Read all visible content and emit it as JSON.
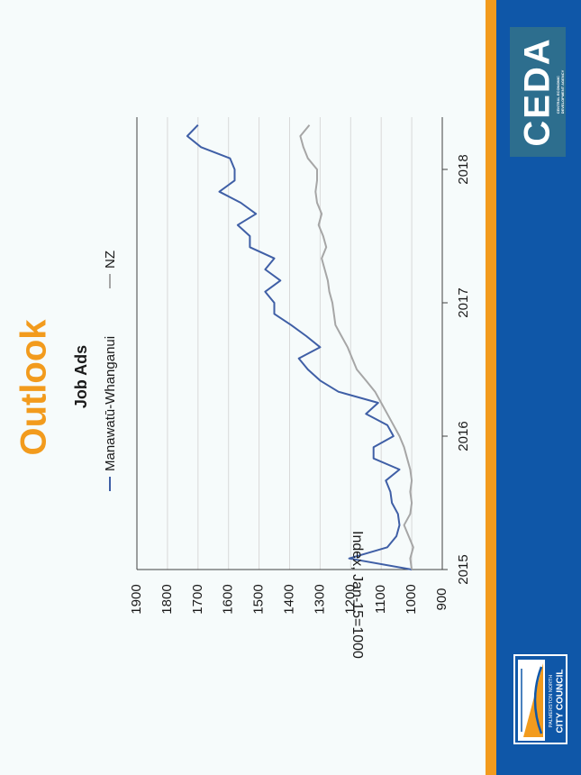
{
  "slide": {
    "title": "Outlook"
  },
  "colors": {
    "accent_orange": "#f29b1d",
    "band_blue": "#0f57a8",
    "ceda_box": "#2d6e8e",
    "series_regional": "#3f5fa6",
    "series_nz": "#a6a6a6",
    "gridline": "#d9d9d9",
    "axis": "#404040"
  },
  "logos": {
    "ceda": {
      "text": "CEDA",
      "subtitle_line1": "CENTRAL ECONOMIC",
      "subtitle_line2": "DEVELOPMENT AGENCY"
    },
    "pncc": {
      "line1": "PALMERSTON NORTH",
      "line2": "CITY COUNCIL"
    }
  },
  "chart_data": {
    "type": "line",
    "orientation": "rotated 90° counter-clockwise",
    "title": "Job Ads",
    "xlabel": "",
    "ylabel": "Index, Jan-15=1000",
    "ylim": [
      900,
      1900
    ],
    "yticks": [
      "900",
      "1000",
      "1100",
      "1200",
      "1300",
      "1400",
      "1500",
      "1600",
      "1700",
      "1800",
      "1900"
    ],
    "xlim": [
      2015.0,
      2018.333
    ],
    "xticks": [
      "2015",
      "2016",
      "2017",
      "2018"
    ],
    "grid": true,
    "legend_position": "top",
    "series": [
      {
        "name": "Manawatū-Whanganui",
        "x": [
          2015.0,
          2015.083,
          2015.167,
          2015.25,
          2015.333,
          2015.417,
          2015.5,
          2015.583,
          2015.667,
          2015.75,
          2015.833,
          2015.917,
          2016.0,
          2016.083,
          2016.167,
          2016.25,
          2016.333,
          2016.417,
          2016.5,
          2016.583,
          2016.667,
          2016.75,
          2016.833,
          2016.917,
          2017.0,
          2017.083,
          2017.167,
          2017.25,
          2017.333,
          2017.417,
          2017.5,
          2017.583,
          2017.667,
          2017.75,
          2017.833,
          2017.917,
          2018.0,
          2018.083,
          2018.167,
          2018.25,
          2018.333
        ],
        "values": [
          1000,
          1205,
          1080,
          1050,
          1040,
          1045,
          1065,
          1070,
          1085,
          1040,
          1125,
          1125,
          1060,
          1080,
          1150,
          1110,
          1240,
          1300,
          1340,
          1370,
          1300,
          1345,
          1395,
          1450,
          1450,
          1480,
          1430,
          1480,
          1450,
          1530,
          1530,
          1570,
          1510,
          1560,
          1630,
          1580,
          1580,
          1595,
          1690,
          1735,
          1700
        ]
      },
      {
        "name": "NZ",
        "x": [
          2015.0,
          2015.083,
          2015.167,
          2015.25,
          2015.333,
          2015.417,
          2015.5,
          2015.583,
          2015.667,
          2015.75,
          2015.833,
          2015.917,
          2016.0,
          2016.083,
          2016.167,
          2016.25,
          2016.333,
          2016.417,
          2016.5,
          2016.583,
          2016.667,
          2016.75,
          2016.833,
          2016.917,
          2017.0,
          2017.083,
          2017.167,
          2017.25,
          2017.333,
          2017.417,
          2017.5,
          2017.583,
          2017.667,
          2017.75,
          2017.833,
          2017.917,
          2018.0,
          2018.083,
          2018.167,
          2018.25,
          2018.333
        ],
        "values": [
          1000,
          1005,
          995,
          1010,
          1025,
          1005,
          1000,
          1005,
          1000,
          1005,
          1015,
          1025,
          1040,
          1060,
          1080,
          1100,
          1120,
          1150,
          1180,
          1195,
          1210,
          1230,
          1250,
          1255,
          1260,
          1270,
          1275,
          1285,
          1295,
          1280,
          1290,
          1305,
          1295,
          1310,
          1315,
          1310,
          1310,
          1340,
          1355,
          1365,
          1335
        ]
      }
    ]
  }
}
